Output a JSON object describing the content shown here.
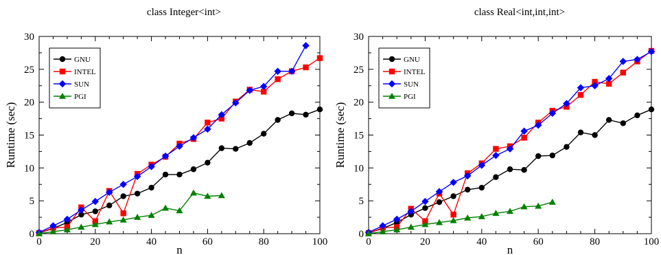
{
  "chart_data": [
    {
      "type": "line",
      "title": "class Integer<int>",
      "xlabel": "n",
      "ylabel": "Runtime (sec)",
      "xlim": [
        0,
        100
      ],
      "ylim": [
        0,
        30
      ],
      "xticks": [
        0,
        20,
        40,
        60,
        80,
        100
      ],
      "yticks": [
        0,
        5,
        10,
        15,
        20,
        25,
        30
      ],
      "grid": false,
      "legend": "top-left",
      "series": [
        {
          "name": "GNU",
          "color": "#000000",
          "marker": "circle",
          "x": [
            0,
            5,
            10,
            15,
            20,
            25,
            30,
            35,
            40,
            45,
            50,
            55,
            60,
            65,
            70,
            75,
            80,
            85,
            90,
            95,
            100
          ],
          "y": [
            0.1,
            0.8,
            1.7,
            2.9,
            3.4,
            4.3,
            5.7,
            6.1,
            7.0,
            9.0,
            9.0,
            9.8,
            10.8,
            13.0,
            12.9,
            13.8,
            15.2,
            17.3,
            18.3,
            18.1,
            18.9
          ]
        },
        {
          "name": "INTEL",
          "color": "#ff0000",
          "marker": "square",
          "x": [
            0,
            5,
            10,
            15,
            20,
            25,
            30,
            35,
            40,
            45,
            50,
            55,
            60,
            65,
            70,
            75,
            80,
            85,
            90,
            95,
            100
          ],
          "y": [
            0.1,
            0.9,
            1.0,
            4.0,
            1.9,
            6.5,
            3.1,
            9.1,
            10.5,
            11.7,
            13.7,
            14.4,
            16.9,
            17.5,
            20.1,
            21.9,
            21.6,
            23.5,
            24.7,
            25.3,
            26.7
          ]
        },
        {
          "name": "SUN",
          "color": "#0000ff",
          "marker": "diamond",
          "x": [
            0,
            5,
            10,
            15,
            20,
            25,
            30,
            35,
            40,
            45,
            50,
            55,
            60,
            65,
            70,
            75,
            80,
            85,
            90,
            95
          ],
          "y": [
            0.2,
            1.2,
            2.2,
            3.6,
            4.9,
            6.3,
            7.5,
            8.7,
            10.2,
            11.8,
            13.3,
            14.6,
            15.9,
            18.1,
            19.9,
            21.8,
            22.4,
            24.7,
            24.7,
            28.6
          ]
        },
        {
          "name": "PGI",
          "color": "#008000",
          "marker": "triangle",
          "x": [
            0,
            5,
            10,
            15,
            20,
            25,
            30,
            35,
            40,
            45,
            50,
            55,
            60,
            65
          ],
          "y": [
            0.0,
            0.3,
            0.6,
            1.0,
            1.4,
            1.8,
            2.1,
            2.5,
            2.8,
            3.9,
            3.5,
            6.2,
            5.7,
            5.8
          ]
        }
      ]
    },
    {
      "type": "line",
      "title": "class Real<int,int,int>",
      "xlabel": "n",
      "ylabel": "Runtime (sec)",
      "xlim": [
        0,
        100
      ],
      "ylim": [
        0,
        30
      ],
      "xticks": [
        0,
        20,
        40,
        60,
        80,
        100
      ],
      "yticks": [
        0,
        5,
        10,
        15,
        20,
        25,
        30
      ],
      "grid": false,
      "legend": "top-left",
      "series": [
        {
          "name": "GNU",
          "color": "#000000",
          "marker": "circle",
          "x": [
            0,
            5,
            10,
            15,
            20,
            25,
            30,
            35,
            40,
            45,
            50,
            55,
            60,
            65,
            70,
            75,
            80,
            85,
            90,
            95,
            100
          ],
          "y": [
            0.1,
            0.8,
            1.7,
            2.9,
            3.9,
            4.8,
            5.7,
            6.7,
            7.0,
            8.6,
            9.8,
            9.7,
            11.8,
            11.9,
            13.2,
            15.4,
            15.0,
            17.3,
            16.8,
            18.0,
            18.9
          ]
        },
        {
          "name": "INTEL",
          "color": "#ff0000",
          "marker": "square",
          "x": [
            0,
            5,
            10,
            15,
            20,
            25,
            30,
            35,
            40,
            45,
            50,
            55,
            60,
            65,
            70,
            75,
            80,
            85,
            90,
            95,
            100
          ],
          "y": [
            0.1,
            0.9,
            1.0,
            3.8,
            1.9,
            6.1,
            2.9,
            9.2,
            10.7,
            12.9,
            13.3,
            14.6,
            16.9,
            18.7,
            19.3,
            21.1,
            23.1,
            22.8,
            24.5,
            26.2,
            27.8
          ]
        },
        {
          "name": "SUN",
          "color": "#0000ff",
          "marker": "diamond",
          "x": [
            0,
            5,
            10,
            15,
            20,
            25,
            30,
            35,
            40,
            45,
            50,
            55,
            60,
            65,
            70,
            75,
            80,
            85,
            90,
            95,
            100
          ],
          "y": [
            0.2,
            1.2,
            2.2,
            3.4,
            4.9,
            6.4,
            7.8,
            8.8,
            10.4,
            11.9,
            12.9,
            15.6,
            16.5,
            18.3,
            19.8,
            22.2,
            22.5,
            23.6,
            26.2,
            26.5,
            27.7
          ]
        },
        {
          "name": "PGI",
          "color": "#008000",
          "marker": "triangle",
          "x": [
            0,
            5,
            10,
            15,
            20,
            25,
            30,
            35,
            40,
            45,
            50,
            55,
            60,
            65
          ],
          "y": [
            0.0,
            0.3,
            0.6,
            1.0,
            1.4,
            1.7,
            2.0,
            2.4,
            2.6,
            3.1,
            3.4,
            4.1,
            4.2,
            4.8
          ]
        }
      ]
    }
  ]
}
